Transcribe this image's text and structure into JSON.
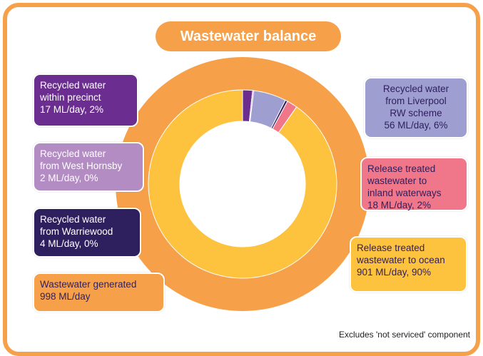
{
  "chart_data": {
    "type": "donut",
    "title": "Wastewater balance",
    "note": "Excludes 'not serviced' component",
    "total": {
      "name": "Wastewater generated",
      "value": 998,
      "value_label": "998 ML/day",
      "color": "#f7a04a"
    },
    "categories": [
      "Recycled water\nwithin precinct",
      "Recycled water\nfrom West Hornsby",
      "Recycled water\nfrom Liverpool\nRW scheme",
      "Recycled water\nfrom Warriewood",
      "Release treated\nwastewater to\ninland waterways",
      "Release treated\nwastewater to ocean"
    ],
    "values": [
      17,
      2,
      56,
      4,
      18,
      901
    ],
    "value_labels": [
      "17 ML/day, 2%",
      "2 ML/day, 0%",
      "56 ML/day, 6%",
      "4 ML/day, 0%",
      "18 ML/day, 2%",
      "901 ML/day, 90%"
    ],
    "colors": [
      "#6b2d8f",
      "#b48cc4",
      "#9e9fd0",
      "#2e1f5e",
      "#f0768a",
      "#fdc23e"
    ]
  }
}
